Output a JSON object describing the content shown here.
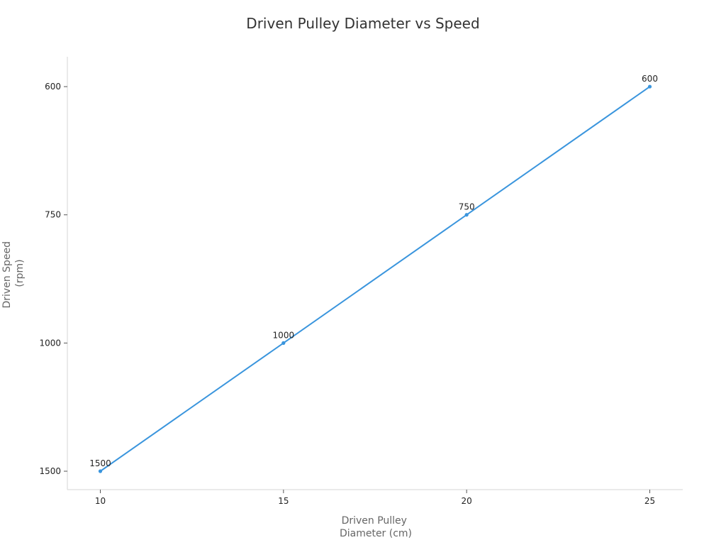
{
  "chart_data": {
    "type": "line",
    "title": "Driven Pulley Diameter vs Speed",
    "xlabel": [
      "Driven Pulley",
      "Diameter (cm)"
    ],
    "ylabel": [
      "Driven Speed",
      "(rpm)"
    ],
    "x_ticks": [
      10,
      15,
      20,
      25
    ],
    "y_ticks": [
      600,
      750,
      1000,
      1500
    ],
    "y_scale": "reciprocal",
    "y_direction": "increasing-downward",
    "xlim": [
      9.1,
      25.9
    ],
    "ylim": [
      573.3,
      1616.2
    ],
    "grid": false,
    "series_color": "#3a95dd",
    "series": [
      {
        "x": [
          10,
          15,
          20,
          25
        ],
        "y": [
          1500,
          1000,
          750,
          600
        ],
        "labels": [
          "1500",
          "1000",
          "750",
          "600"
        ]
      }
    ]
  }
}
